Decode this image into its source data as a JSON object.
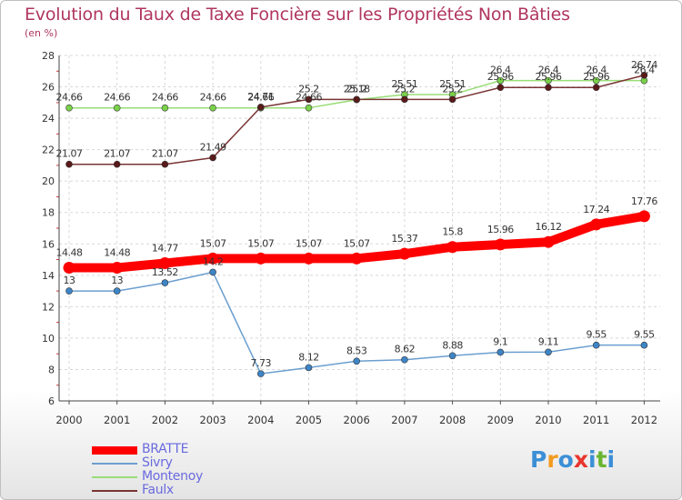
{
  "title": "Evolution du Taux de Taxe Foncière sur les Propriétés Non Bâties",
  "subtitle": "(en %)",
  "logo": {
    "text": "Proxiti",
    "colors": [
      "#3c8fd6",
      "#f39a1e",
      "#3c8fd6",
      "#e8362d",
      "#3c8fd6",
      "#6ab530",
      "#3c8fd6"
    ]
  },
  "chart_data": {
    "type": "line",
    "title": "Evolution du Taux de Taxe Foncière sur les Propriétés Non Bâties",
    "ylabel": "(en %)",
    "xlabel": "",
    "ylim": [
      6,
      28
    ],
    "yticks": [
      6,
      8,
      10,
      12,
      14,
      16,
      18,
      20,
      22,
      24,
      26,
      28
    ],
    "grid": true,
    "legend_position": "bottom-left",
    "categories": [
      "2000",
      "2001",
      "2002",
      "2003",
      "2004",
      "2005",
      "2006",
      "2007",
      "2008",
      "2009",
      "2010",
      "2011",
      "2012"
    ],
    "series": [
      {
        "name": "BRATTE",
        "color": "#ff0000",
        "markerColor": "#ff0000",
        "thick": true,
        "values": [
          14.48,
          14.48,
          14.77,
          15.07,
          15.07,
          15.07,
          15.07,
          15.37,
          15.8,
          15.96,
          16.12,
          17.24,
          17.76
        ],
        "labels": [
          "14.48",
          "14.48",
          "14.77",
          "15.07",
          "15.07",
          "15.07",
          "15.07",
          "15.37",
          "15.8",
          "15.96",
          "16.12",
          "17.24",
          "17.76"
        ]
      },
      {
        "name": "Sivry",
        "color": "#6b9fcf",
        "markerColor": "#3d85c6",
        "thick": false,
        "values": [
          13,
          13,
          13.52,
          14.2,
          7.73,
          8.12,
          8.53,
          8.62,
          8.88,
          9.1,
          9.11,
          9.55,
          9.55
        ],
        "labels": [
          "13",
          "13",
          "13.52",
          "14.2",
          "7.73",
          "8.12",
          "8.53",
          "8.62",
          "8.88",
          "9.1",
          "9.11",
          "9.55",
          "9.55"
        ]
      },
      {
        "name": "Montenoy",
        "color": "#99dd77",
        "markerColor": "#7ad14a",
        "thick": false,
        "values": [
          24.66,
          24.66,
          24.66,
          24.66,
          24.66,
          24.66,
          25.18,
          25.51,
          25.51,
          26.4,
          26.4,
          26.4,
          26.4
        ],
        "labels": [
          "24.66",
          "24.66",
          "24.66",
          "24.66",
          "24.66",
          "24.66",
          "25.18",
          "25.51",
          "25.51",
          "26.4",
          "26.4",
          "26.4",
          "26.4"
        ]
      },
      {
        "name": "Faulx",
        "color": "#7a3434",
        "markerColor": "#5a1a1a",
        "thick": false,
        "values": [
          21.07,
          21.07,
          21.07,
          21.49,
          24.71,
          25.2,
          25.2,
          25.2,
          25.2,
          25.96,
          25.96,
          25.96,
          26.74
        ],
        "labels": [
          "21.07",
          "21.07",
          "21.07",
          "21.49",
          "24.71",
          "25.2",
          "25.2",
          "25.2",
          "25.2",
          "25.96",
          "25.96",
          "25.96",
          "26.74"
        ]
      }
    ]
  }
}
